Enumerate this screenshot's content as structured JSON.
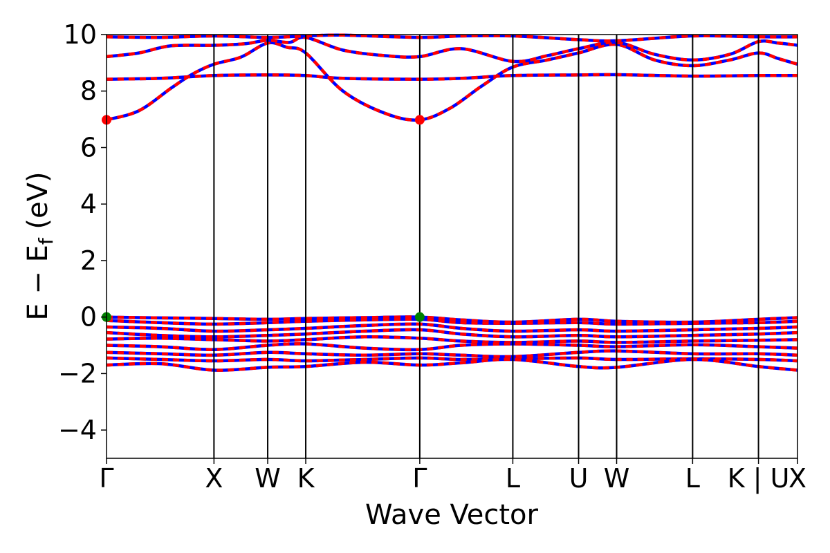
{
  "chart_data": {
    "type": "line",
    "xlabel": "Wave Vector",
    "ylabel": "E − E_f (eV)",
    "ylabel_parts": {
      "main": "E − E",
      "sub": "f",
      "unit": " (eV)"
    },
    "ylim": [
      -5,
      10
    ],
    "xlim": [
      0,
      6.43
    ],
    "yticks": [
      -4,
      -2,
      0,
      2,
      4,
      6,
      8,
      10
    ],
    "ytick_labels": [
      "−4",
      "−2",
      "0",
      "2",
      "4",
      "6",
      "8",
      "10"
    ],
    "kpoints": [
      {
        "label": "Γ",
        "x": 0.0
      },
      {
        "label": "X",
        "x": 1.0
      },
      {
        "label": "W",
        "x": 1.5
      },
      {
        "label": "K",
        "x": 1.854
      },
      {
        "label": "Γ",
        "x": 2.915
      },
      {
        "label": "L",
        "x": 3.781
      },
      {
        "label": "U",
        "x": 4.393
      },
      {
        "label": "W",
        "x": 4.747
      },
      {
        "label": "L",
        "x": 5.454
      },
      {
        "label": "K | U",
        "x": 6.067
      },
      {
        "label": "X",
        "x": 6.43
      }
    ],
    "line_colors": {
      "spin_up": "#ff0000",
      "spin_down": "#0000ff"
    },
    "marker_colors": {
      "cbm": "#ff0000",
      "vbm": "#008000"
    },
    "cbm_points": [
      {
        "x": 0.0,
        "y": 6.98
      },
      {
        "x": 2.915,
        "y": 6.98
      }
    ],
    "vbm_points": [
      {
        "x": 0.0,
        "y": 0.0
      },
      {
        "x": 2.915,
        "y": 0.0
      }
    ],
    "conduction_bands": [
      [
        [
          0,
          6.98
        ],
        [
          0.3,
          7.3
        ],
        [
          0.6,
          8.1
        ],
        [
          0.8,
          8.6
        ],
        [
          1.0,
          8.95
        ],
        [
          1.25,
          9.2
        ],
        [
          1.5,
          9.7
        ],
        [
          1.68,
          9.55
        ],
        [
          1.854,
          9.35
        ],
        [
          2.2,
          8.0
        ],
        [
          2.6,
          7.2
        ],
        [
          2.915,
          6.98
        ],
        [
          3.2,
          7.4
        ],
        [
          3.5,
          8.2
        ],
        [
          3.781,
          8.85
        ],
        [
          4.1,
          9.1
        ],
        [
          4.393,
          9.35
        ],
        [
          4.747,
          9.65
        ],
        [
          5.1,
          9.1
        ],
        [
          5.454,
          8.9
        ],
        [
          5.8,
          9.1
        ],
        [
          6.067,
          9.35
        ],
        [
          6.25,
          9.15
        ],
        [
          6.43,
          8.95
        ]
      ],
      [
        [
          0,
          8.42
        ],
        [
          0.5,
          8.45
        ],
        [
          1.0,
          8.55
        ],
        [
          1.5,
          8.57
        ],
        [
          1.854,
          8.55
        ],
        [
          2.2,
          8.45
        ],
        [
          2.915,
          8.42
        ],
        [
          3.3,
          8.45
        ],
        [
          3.781,
          8.55
        ],
        [
          4.393,
          8.57
        ],
        [
          4.747,
          8.58
        ],
        [
          5.454,
          8.53
        ],
        [
          6.067,
          8.55
        ],
        [
          6.43,
          8.55
        ]
      ],
      [
        [
          0,
          9.22
        ],
        [
          0.3,
          9.35
        ],
        [
          0.6,
          9.6
        ],
        [
          1.0,
          9.62
        ],
        [
          1.3,
          9.68
        ],
        [
          1.5,
          9.8
        ],
        [
          1.7,
          9.72
        ],
        [
          1.854,
          9.9
        ],
        [
          2.2,
          9.45
        ],
        [
          2.6,
          9.25
        ],
        [
          2.915,
          9.22
        ],
        [
          3.3,
          9.5
        ],
        [
          3.781,
          9.05
        ],
        [
          4.1,
          9.25
        ],
        [
          4.393,
          9.5
        ],
        [
          4.747,
          9.72
        ],
        [
          5.1,
          9.3
        ],
        [
          5.454,
          9.1
        ],
        [
          5.8,
          9.3
        ],
        [
          6.067,
          9.75
        ],
        [
          6.25,
          9.7
        ],
        [
          6.43,
          9.62
        ]
      ],
      [
        [
          0,
          9.92
        ],
        [
          0.5,
          9.9
        ],
        [
          1.0,
          9.95
        ],
        [
          1.5,
          9.9
        ],
        [
          1.854,
          9.95
        ],
        [
          2.2,
          9.98
        ],
        [
          2.915,
          9.9
        ],
        [
          3.3,
          9.95
        ],
        [
          3.781,
          9.95
        ],
        [
          4.393,
          9.82
        ],
        [
          4.747,
          9.78
        ],
        [
          5.454,
          9.95
        ],
        [
          6.067,
          9.92
        ],
        [
          6.43,
          9.92
        ]
      ]
    ],
    "valence_bands": [
      [
        [
          0,
          0.0
        ],
        [
          0.5,
          -0.03
        ],
        [
          1.0,
          -0.05
        ],
        [
          1.5,
          -0.08
        ],
        [
          1.854,
          -0.05
        ],
        [
          2.4,
          -0.02
        ],
        [
          2.915,
          0.0
        ],
        [
          3.3,
          -0.1
        ],
        [
          3.781,
          -0.18
        ],
        [
          4.393,
          -0.08
        ],
        [
          4.747,
          -0.15
        ],
        [
          5.454,
          -0.18
        ],
        [
          6.067,
          -0.08
        ],
        [
          6.43,
          -0.02
        ]
      ],
      [
        [
          0,
          -0.12
        ],
        [
          0.5,
          -0.2
        ],
        [
          1.0,
          -0.25
        ],
        [
          1.5,
          -0.2
        ],
        [
          1.854,
          -0.15
        ],
        [
          2.4,
          -0.1
        ],
        [
          2.915,
          -0.08
        ],
        [
          3.3,
          -0.2
        ],
        [
          3.781,
          -0.22
        ],
        [
          4.393,
          -0.2
        ],
        [
          4.747,
          -0.25
        ],
        [
          5.454,
          -0.22
        ],
        [
          6.067,
          -0.2
        ],
        [
          6.43,
          -0.15
        ]
      ],
      [
        [
          0,
          -0.35
        ],
        [
          0.5,
          -0.4
        ],
        [
          1.0,
          -0.5
        ],
        [
          1.5,
          -0.45
        ],
        [
          1.854,
          -0.4
        ],
        [
          2.4,
          -0.3
        ],
        [
          2.915,
          -0.25
        ],
        [
          3.3,
          -0.4
        ],
        [
          3.781,
          -0.5
        ],
        [
          4.393,
          -0.45
        ],
        [
          4.747,
          -0.5
        ],
        [
          5.454,
          -0.45
        ],
        [
          6.067,
          -0.4
        ],
        [
          6.43,
          -0.35
        ]
      ],
      [
        [
          0,
          -0.55
        ],
        [
          0.5,
          -0.65
        ],
        [
          1.0,
          -0.7
        ],
        [
          1.5,
          -0.65
        ],
        [
          1.854,
          -0.6
        ],
        [
          2.4,
          -0.5
        ],
        [
          2.915,
          -0.45
        ],
        [
          3.3,
          -0.6
        ],
        [
          3.781,
          -0.7
        ],
        [
          4.393,
          -0.65
        ],
        [
          4.747,
          -0.7
        ],
        [
          5.454,
          -0.65
        ],
        [
          6.067,
          -0.6
        ],
        [
          6.43,
          -0.55
        ]
      ],
      [
        [
          0,
          -0.78
        ],
        [
          0.5,
          -0.75
        ],
        [
          1.0,
          -0.8
        ],
        [
          1.5,
          -0.85
        ],
        [
          1.854,
          -0.8
        ],
        [
          2.4,
          -0.7
        ],
        [
          2.915,
          -0.75
        ],
        [
          3.3,
          -0.85
        ],
        [
          3.781,
          -0.9
        ],
        [
          4.393,
          -0.85
        ],
        [
          4.747,
          -0.9
        ],
        [
          5.454,
          -0.85
        ],
        [
          6.067,
          -0.82
        ],
        [
          6.43,
          -0.8
        ]
      ],
      [
        [
          0,
          -1.0
        ],
        [
          0.5,
          -1.05
        ],
        [
          1.0,
          -1.15
        ],
        [
          1.5,
          -1.0
        ],
        [
          1.854,
          -0.95
        ],
        [
          2.4,
          -1.1
        ],
        [
          2.915,
          -1.15
        ],
        [
          3.3,
          -1.0
        ],
        [
          3.781,
          -0.95
        ],
        [
          4.393,
          -1.0
        ],
        [
          4.747,
          -1.05
        ],
        [
          5.454,
          -0.98
        ],
        [
          6.067,
          -1.05
        ],
        [
          6.43,
          -1.1
        ]
      ],
      [
        [
          0,
          -1.25
        ],
        [
          0.5,
          -1.3
        ],
        [
          1.0,
          -1.35
        ],
        [
          1.5,
          -1.25
        ],
        [
          1.854,
          -1.3
        ],
        [
          2.4,
          -1.35
        ],
        [
          2.915,
          -1.3
        ],
        [
          3.3,
          -1.35
        ],
        [
          3.781,
          -1.4
        ],
        [
          4.393,
          -1.25
        ],
        [
          4.747,
          -1.2
        ],
        [
          5.454,
          -1.3
        ],
        [
          6.067,
          -1.3
        ],
        [
          6.43,
          -1.35
        ]
      ],
      [
        [
          0,
          -1.45
        ],
        [
          0.5,
          -1.5
        ],
        [
          1.0,
          -1.55
        ],
        [
          1.5,
          -1.5
        ],
        [
          1.854,
          -1.55
        ],
        [
          2.4,
          -1.5
        ],
        [
          2.915,
          -1.45
        ],
        [
          3.3,
          -1.5
        ],
        [
          3.781,
          -1.48
        ],
        [
          4.393,
          -1.45
        ],
        [
          4.747,
          -1.5
        ],
        [
          5.454,
          -1.48
        ],
        [
          6.067,
          -1.5
        ],
        [
          6.43,
          -1.55
        ]
      ],
      [
        [
          0,
          -1.7
        ],
        [
          0.5,
          -1.65
        ],
        [
          1.0,
          -1.88
        ],
        [
          1.5,
          -1.78
        ],
        [
          1.854,
          -1.75
        ],
        [
          2.4,
          -1.6
        ],
        [
          2.915,
          -1.7
        ],
        [
          3.3,
          -1.62
        ],
        [
          3.781,
          -1.5
        ],
        [
          4.393,
          -1.75
        ],
        [
          4.747,
          -1.78
        ],
        [
          5.454,
          -1.5
        ],
        [
          6.067,
          -1.75
        ],
        [
          6.43,
          -1.88
        ]
      ]
    ]
  }
}
